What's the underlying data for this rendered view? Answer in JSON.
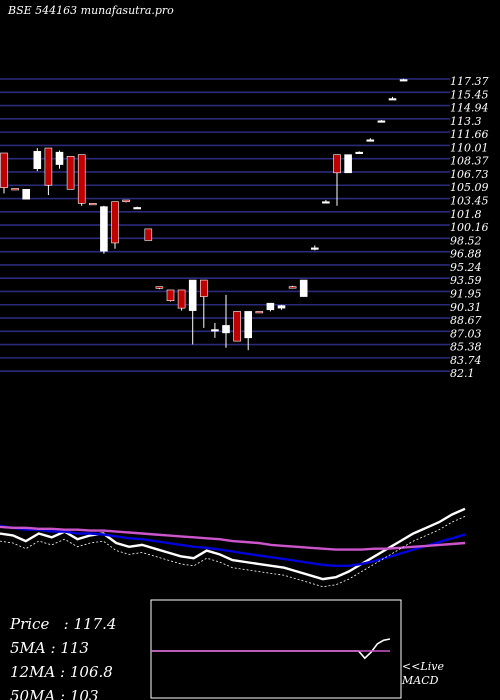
{
  "header": {
    "title": "BSE 544163 munafasutra.pro"
  },
  "stats": [
    {
      "label": "Price",
      "value": "117.4"
    },
    {
      "label": "5MA",
      "value": "113"
    },
    {
      "label": "12MA",
      "value": "106.8"
    },
    {
      "label": "50MA",
      "value": "103"
    }
  ],
  "macd_label": {
    "line1": "<<Live",
    "line2": "MACD"
  },
  "colors": {
    "background": "#000000",
    "gridline": "#2a2a7a",
    "up_candle": "#ffffff",
    "down_candle": "#c00000",
    "ma_fast": "#ffffff",
    "ma_mid": "#0000dd",
    "ma_slow": "#cc55cc"
  },
  "chart_data": [
    {
      "type": "candlestick",
      "ylim": [
        82.1,
        117.37
      ],
      "y_ticks": [
        "117.37",
        "115.45",
        "114.94",
        "113.3",
        "111.66",
        "110.01",
        "108.37",
        "106.73",
        "105.09",
        "103.45",
        "101.8",
        "100.16",
        "98.52",
        "96.88",
        "95.24",
        "93.59",
        "91.95",
        "90.31",
        "88.67",
        "87.03",
        "85.38",
        "83.74",
        "82.1"
      ],
      "candles": [
        {
          "o": 108.4,
          "h": 108.4,
          "l": 103.5,
          "c": 104.2
        },
        {
          "o": 104.1,
          "h": 104.1,
          "l": 103.9,
          "c": 104.0
        },
        {
          "o": 102.8,
          "h": 104.0,
          "l": 102.8,
          "c": 104.0
        },
        {
          "o": 106.5,
          "h": 109.0,
          "l": 106.2,
          "c": 108.6
        },
        {
          "o": 109.0,
          "h": 109.0,
          "l": 103.3,
          "c": 104.5
        },
        {
          "o": 107.0,
          "h": 108.7,
          "l": 106.5,
          "c": 108.5
        },
        {
          "o": 108.0,
          "h": 108.0,
          "l": 104.0,
          "c": 104.0
        },
        {
          "o": 108.2,
          "h": 108.2,
          "l": 102.0,
          "c": 102.3
        },
        {
          "o": 102.3,
          "h": 102.3,
          "l": 102.1,
          "c": 102.2
        },
        {
          "o": 96.5,
          "h": 102.0,
          "l": 96.2,
          "c": 101.9
        },
        {
          "o": 102.5,
          "h": 102.5,
          "l": 96.8,
          "c": 97.5
        },
        {
          "o": 102.7,
          "h": 102.7,
          "l": 102.4,
          "c": 102.5
        },
        {
          "o": 101.8,
          "h": 101.9,
          "l": 101.7,
          "c": 101.8
        },
        {
          "o": 99.2,
          "h": 99.2,
          "l": 97.8,
          "c": 97.8
        },
        {
          "o": 92.2,
          "h": 92.2,
          "l": 91.9,
          "c": 92.0
        },
        {
          "o": 91.8,
          "h": 91.8,
          "l": 90.4,
          "c": 90.5
        },
        {
          "o": 91.8,
          "h": 91.8,
          "l": 89.3,
          "c": 89.6
        },
        {
          "o": 89.3,
          "h": 93.0,
          "l": 85.2,
          "c": 93.0
        },
        {
          "o": 93.0,
          "h": 93.0,
          "l": 87.2,
          "c": 91.0
        },
        {
          "o": 87.0,
          "h": 87.8,
          "l": 86.0,
          "c": 87.0
        },
        {
          "o": 86.6,
          "h": 91.2,
          "l": 84.8,
          "c": 87.5
        },
        {
          "o": 89.2,
          "h": 89.2,
          "l": 85.6,
          "c": 85.6
        },
        {
          "o": 86.0,
          "h": 89.2,
          "l": 84.5,
          "c": 89.2
        },
        {
          "o": 89.2,
          "h": 89.2,
          "l": 89.0,
          "c": 89.1
        },
        {
          "o": 89.4,
          "h": 90.2,
          "l": 89.2,
          "c": 90.2
        },
        {
          "o": 89.6,
          "h": 90.0,
          "l": 89.4,
          "c": 89.9
        },
        {
          "o": 92.2,
          "h": 92.3,
          "l": 92.0,
          "c": 92.1
        },
        {
          "o": 91.0,
          "h": 93.0,
          "l": 91.0,
          "c": 93.0
        },
        {
          "o": 96.9,
          "h": 97.2,
          "l": 96.6,
          "c": 96.9
        },
        {
          "o": 102.5,
          "h": 102.7,
          "l": 102.3,
          "c": 102.5
        },
        {
          "o": 108.2,
          "h": 108.2,
          "l": 102.0,
          "c": 106.0
        },
        {
          "o": 106.0,
          "h": 108.2,
          "l": 106.0,
          "c": 108.2
        },
        {
          "o": 108.4,
          "h": 108.6,
          "l": 108.3,
          "c": 108.5
        },
        {
          "o": 110.0,
          "h": 110.2,
          "l": 109.9,
          "c": 110.0
        },
        {
          "o": 112.2,
          "h": 112.4,
          "l": 112.1,
          "c": 112.3
        },
        {
          "o": 115.0,
          "h": 115.2,
          "l": 114.9,
          "c": 115.0
        },
        {
          "o": 117.3,
          "h": 117.4,
          "l": 117.2,
          "c": 117.3
        }
      ]
    },
    {
      "type": "line",
      "series": [
        {
          "color": "#ffffff",
          "values": [
            70,
            68,
            62,
            70,
            66,
            72,
            64,
            68,
            70,
            60,
            56,
            58,
            54,
            50,
            46,
            44,
            52,
            48,
            42,
            40,
            38,
            36,
            34,
            30,
            26,
            22,
            24,
            30,
            38,
            46,
            54,
            62,
            70,
            76,
            82,
            90,
            96
          ]
        },
        {
          "color": "#0000dd",
          "values": [
            78,
            76,
            74,
            74,
            72,
            72,
            70,
            70,
            69,
            67,
            65,
            64,
            62,
            60,
            58,
            56,
            55,
            53,
            51,
            49,
            47,
            45,
            43,
            41,
            39,
            37,
            36,
            36,
            38,
            41,
            45,
            49,
            53,
            57,
            61,
            65,
            69
          ]
        },
        {
          "color": "#cc55cc",
          "values": [
            77,
            76,
            76,
            75,
            75,
            74,
            74,
            73,
            73,
            72,
            71,
            70,
            69,
            68,
            67,
            66,
            65,
            64,
            62,
            61,
            60,
            58,
            57,
            56,
            55,
            54,
            53,
            53,
            53,
            54,
            54,
            55,
            56,
            57,
            58,
            59,
            60
          ]
        }
      ]
    },
    {
      "type": "line",
      "series": [
        {
          "color": "#ffffff",
          "values": [
            0,
            0,
            0,
            0,
            0,
            0,
            0,
            0,
            0,
            0,
            0,
            0,
            0,
            0,
            0,
            0,
            0,
            0,
            0,
            0,
            0,
            0,
            0,
            0,
            0,
            0,
            0,
            0,
            0,
            0,
            0,
            0,
            0,
            0,
            -0.6,
            -0.1,
            0.6,
            0.9,
            1.0
          ]
        },
        {
          "color": "#cc55cc",
          "values": [
            0,
            0,
            0,
            0,
            0,
            0,
            0,
            0,
            0,
            0,
            0,
            0,
            0,
            0,
            0,
            0,
            0,
            0,
            0,
            0,
            0,
            0,
            0,
            0,
            0,
            0,
            0,
            0,
            0,
            0,
            0,
            0,
            0,
            0,
            0,
            0,
            0,
            0,
            0
          ]
        }
      ]
    }
  ]
}
